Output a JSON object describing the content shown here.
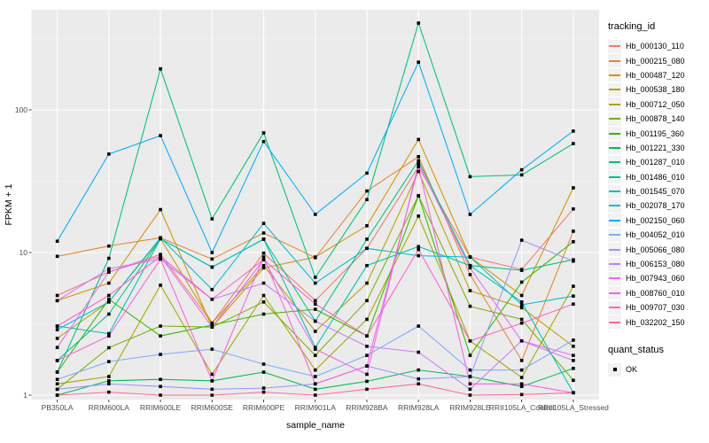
{
  "figure": {
    "y_axis_title": "FPKM + 1",
    "x_axis_title": "sample_name",
    "y_tick_labels": [
      "1",
      "10",
      "100"
    ],
    "legend": {
      "tracking_title": "tracking_id",
      "quant_title": "quant_status",
      "quant_items": [
        {
          "label": "OK",
          "shape": "filled-square",
          "color": "#000000"
        }
      ]
    },
    "colors": {
      "panel_bg": "#EBEBEB",
      "grid_major": "#FFFFFF",
      "tick_text": "#4D4D4D",
      "point": "#000000",
      "legend_key_bg": "#F2F2F2"
    }
  },
  "chart_data": {
    "type": "line",
    "title": "",
    "xlabel": "sample_name",
    "ylabel": "FPKM + 1",
    "y_scale": "log10",
    "ylim": [
      1,
      500
    ],
    "yticks": [
      1,
      10,
      100
    ],
    "grid": "on",
    "legend_position": "right",
    "point_marker": {
      "legend_title": "quant_status",
      "label": "OK",
      "shape": "filled-square",
      "color": "#000000"
    },
    "categories": [
      "PB350LA",
      "RRIM600LA",
      "RRIM600LE",
      "RRIM600SE",
      "RRIM600PE",
      "RRIM901LA",
      "RRIM928BA",
      "RRIM928LA",
      "RRIM928LE",
      "RRII105LA_Control",
      "RRII105LA_Stressed"
    ],
    "series": [
      {
        "name": "Hb_000130_110",
        "color": "#F8766D",
        "values": [
          5.0,
          7.3,
          9.7,
          3.2,
          9.9,
          4.6,
          10.7,
          40,
          9.3,
          7.6,
          20.2
        ]
      },
      {
        "name": "Hb_000215_080",
        "color": "#E8852F",
        "values": [
          9.4,
          11.1,
          12.7,
          9.0,
          13.7,
          9.2,
          27,
          47,
          7.0,
          1.75,
          14.1
        ]
      },
      {
        "name": "Hb_000487_120",
        "color": "#D39200",
        "values": [
          4.6,
          6.1,
          20,
          3.0,
          7.8,
          9.3,
          15.4,
          62,
          9.3,
          5.0,
          28.4
        ]
      },
      {
        "name": "Hb_000538_180",
        "color": "#B8A100",
        "values": [
          2.5,
          4.5,
          12.5,
          3.2,
          8.1,
          2.8,
          6.1,
          37,
          5.4,
          4.1,
          2.2
        ]
      },
      {
        "name": "Hb_000712_050",
        "color": "#A3A500",
        "values": [
          1.2,
          1.35,
          5.9,
          1.4,
          5.0,
          1.5,
          3.4,
          18,
          2.4,
          1.33,
          5.8
        ]
      },
      {
        "name": "Hb_000878_140",
        "color": "#7CAE00",
        "values": [
          1.1,
          2.15,
          3.05,
          3.0,
          4.5,
          1.9,
          4.6,
          25,
          4.2,
          3.4,
          1.27
        ]
      },
      {
        "name": "Hb_001195_360",
        "color": "#39B600",
        "values": [
          1.45,
          4.7,
          2.6,
          3.1,
          3.7,
          4.0,
          2.6,
          25,
          1.9,
          6.2,
          11.9
        ]
      },
      {
        "name": "Hb_001221_330",
        "color": "#00BC51",
        "values": [
          1.0,
          1.26,
          1.29,
          1.26,
          1.45,
          1.1,
          1.25,
          1.5,
          1.35,
          1.15,
          1.54
        ]
      },
      {
        "name": "Hb_001287_010",
        "color": "#00C087",
        "values": [
          1.75,
          3.7,
          12.5,
          7.9,
          12.4,
          3.3,
          12.4,
          44,
          8.1,
          7.5,
          8.9
        ]
      },
      {
        "name": "Hb_001486_010",
        "color": "#00BF7D",
        "values": [
          1.45,
          9.1,
          194,
          17.2,
          69,
          6.7,
          23.5,
          406,
          34,
          35,
          58
        ]
      },
      {
        "name": "Hb_001545_070",
        "color": "#00C0B2",
        "values": [
          3.05,
          2.7,
          12.5,
          7.9,
          12.4,
          2.16,
          8.1,
          11,
          8.1,
          4.5,
          1.04
        ]
      },
      {
        "name": "Hb_002078_170",
        "color": "#00BDD2",
        "values": [
          2.88,
          4.5,
          12.7,
          5.5,
          16,
          6.1,
          10.7,
          9.5,
          9.3,
          4.3,
          4.95
        ]
      },
      {
        "name": "Hb_002150_060",
        "color": "#00ACFC",
        "values": [
          12,
          49,
          66,
          10,
          60,
          18.5,
          36,
          216,
          18.5,
          38,
          71
        ]
      },
      {
        "name": "Hb_004052_010",
        "color": "#7CA9FF",
        "values": [
          1.29,
          1.72,
          1.93,
          2.1,
          1.65,
          1.35,
          1.9,
          3.05,
          1.5,
          1.5,
          2.43
        ]
      },
      {
        "name": "Hb_005066_080",
        "color": "#9B95FA",
        "values": [
          1.1,
          1.2,
          1.15,
          1.1,
          1.12,
          1.2,
          1.6,
          1.3,
          1.35,
          12.2,
          8.7
        ]
      },
      {
        "name": "Hb_006153_080",
        "color": "#C77CFF",
        "values": [
          4.6,
          7.7,
          9.0,
          4.7,
          6.1,
          3.3,
          2.2,
          2.0,
          1.1,
          2.4,
          1.75
        ]
      },
      {
        "name": "Hb_007943_060",
        "color": "#E76BF3",
        "values": [
          2.16,
          7.3,
          9.4,
          3.0,
          8.9,
          2.1,
          1.4,
          42,
          7.8,
          2.4,
          1.9
        ]
      },
      {
        "name": "Hb_008760_010",
        "color": "#F763DF",
        "values": [
          1.75,
          2.6,
          9.0,
          1.26,
          9.3,
          1.2,
          1.6,
          40,
          1.2,
          1.2,
          1.04
        ]
      },
      {
        "name": "Hb_009707_030",
        "color": "#FF61C3",
        "values": [
          3.05,
          5.0,
          9.4,
          4.7,
          8.9,
          4.35,
          2.6,
          10.5,
          2.4,
          3.2,
          4.35
        ]
      },
      {
        "name": "Hb_032202_150",
        "color": "#FF6A9A",
        "values": [
          1.0,
          1.05,
          1.0,
          1.0,
          1.05,
          1.0,
          1.1,
          1.2,
          1.0,
          1.01,
          1.04
        ]
      }
    ]
  }
}
